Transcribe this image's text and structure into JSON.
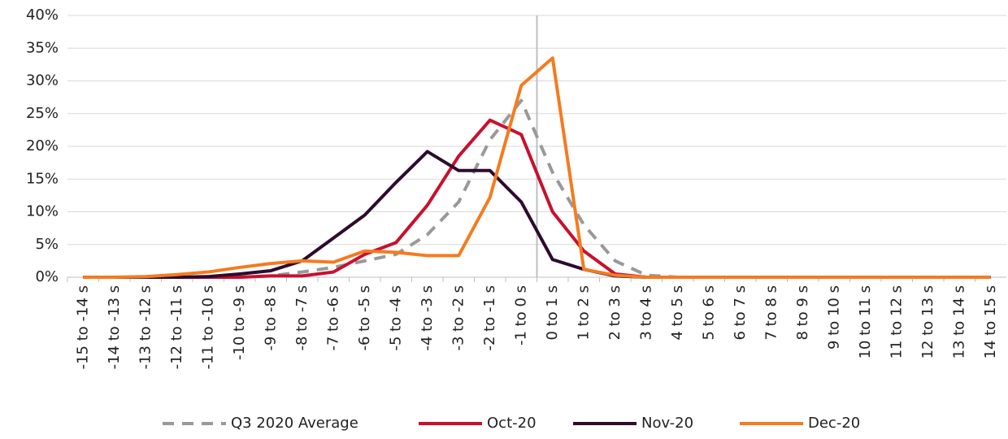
{
  "chart_data": {
    "type": "line",
    "categories": [
      "-15 to -14 s",
      "-14 to -13 s",
      "-13 to -12 s",
      "-12 to -11 s",
      "-11 to -10 s",
      "-10 to -9 s",
      "-9 to -8 s",
      "-8 to -7 s",
      "-7 to -6 s",
      "-6 to -5 s",
      "-5 to -4 s",
      "-4 to -3 s",
      "-3 to -2 s",
      "-2 to -1 s",
      "-1 to 0 s",
      "0 to 1 s",
      "1 to 2 s",
      "2 to 3 s",
      "3 to 4 s",
      "4 to 5 s",
      "5 to 6 s",
      "6 to 7 s",
      "7 to 8 s",
      "8 to 9 s",
      "9 to 10 s",
      "10 to 11 s",
      "11 to 12 s",
      "12 to 13 s",
      "13 to 14 s",
      "14 to 15 s"
    ],
    "series": [
      {
        "name": "Q3 2020 Average",
        "color": "#999999",
        "dashed": true,
        "values": [
          0,
          0,
          0,
          0,
          0,
          0,
          0.2,
          0.8,
          1.5,
          2.5,
          3.5,
          6.5,
          11.5,
          21,
          27,
          16,
          8,
          2.5,
          0.3,
          0,
          0,
          0,
          0,
          0,
          0,
          0,
          0,
          0,
          0,
          0
        ]
      },
      {
        "name": "Oct-20",
        "color": "#c8102e",
        "values": [
          0,
          0,
          0,
          0,
          0,
          0,
          0.2,
          0.2,
          0.8,
          3.5,
          5.3,
          11,
          18.5,
          24,
          21.8,
          10,
          4,
          0.5,
          0,
          0,
          0,
          0,
          0,
          0,
          0,
          0,
          0,
          0,
          0,
          0
        ]
      },
      {
        "name": "Nov-20",
        "color": "#2d0b2e",
        "values": [
          0,
          0,
          0,
          0,
          0.1,
          0.5,
          1,
          2.5,
          6,
          9.5,
          14.5,
          19.2,
          16.3,
          16.3,
          11.5,
          2.7,
          1.2,
          0.2,
          0,
          0,
          0,
          0,
          0,
          0,
          0,
          0,
          0,
          0,
          0,
          0
        ]
      },
      {
        "name": "Dec-20",
        "color": "#f47b20",
        "values": [
          0,
          0,
          0.1,
          0.4,
          0.8,
          1.5,
          2.1,
          2.5,
          2.3,
          4,
          3.8,
          3.3,
          3.3,
          12.2,
          29.3,
          33.5,
          1.2,
          0.3,
          0,
          0,
          0,
          0,
          0,
          0,
          0,
          0,
          0,
          0,
          0,
          0
        ]
      }
    ],
    "ylim": [
      0,
      40
    ],
    "yticks": [
      {
        "value": 0,
        "label": "0%"
      },
      {
        "value": 5,
        "label": "5%"
      },
      {
        "value": 10,
        "label": "10%"
      },
      {
        "value": 15,
        "label": "15%"
      },
      {
        "value": 20,
        "label": "20%"
      },
      {
        "value": 25,
        "label": "25%"
      },
      {
        "value": 30,
        "label": "30%"
      },
      {
        "value": 35,
        "label": "35%"
      },
      {
        "value": 40,
        "label": "40%"
      }
    ]
  }
}
